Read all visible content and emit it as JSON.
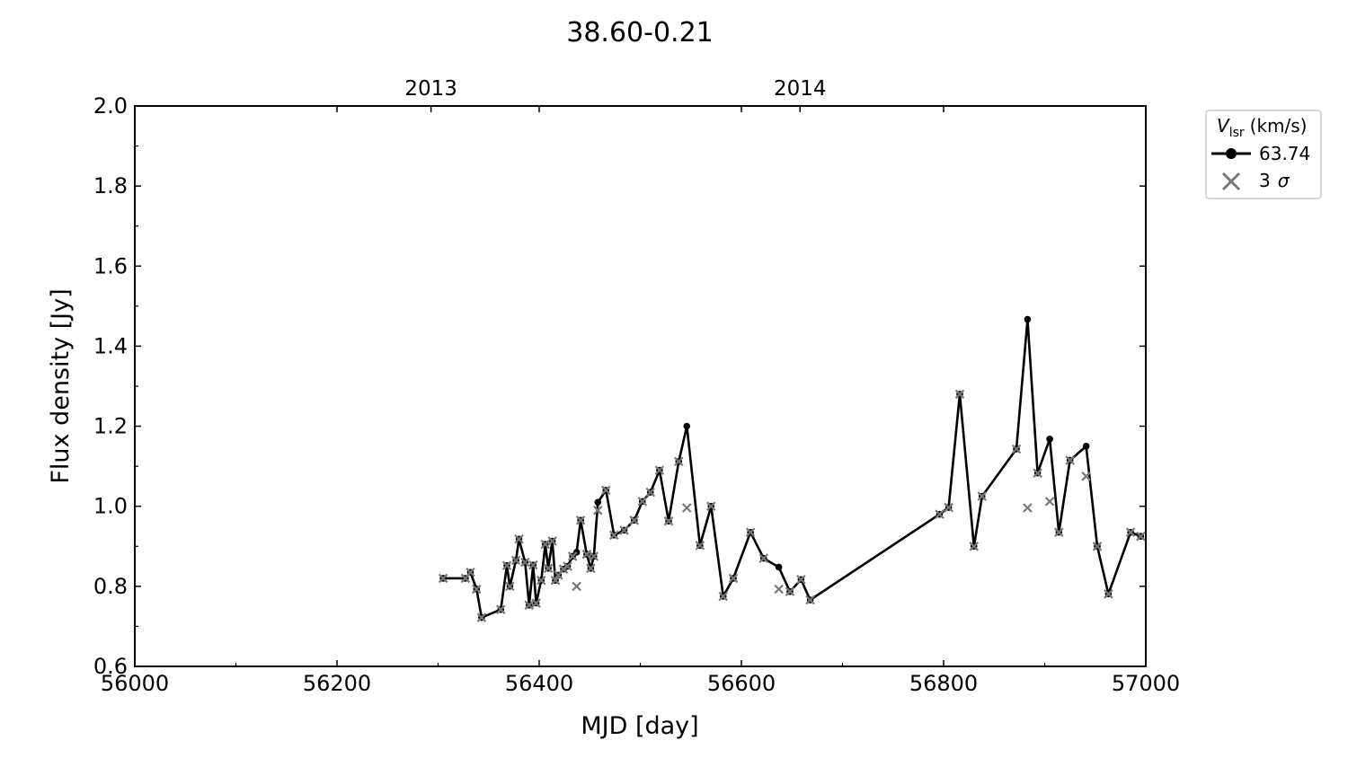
{
  "chart_data": {
    "type": "line",
    "title": "38.60-0.21",
    "xlabel": "MJD [day]",
    "ylabel": "Flux density [Jy]",
    "xlim": [
      56000,
      57000
    ],
    "ylim": [
      0.6,
      2.0
    ],
    "x_ticks": [
      "56000",
      "56200",
      "56400",
      "56600",
      "56800",
      "57000"
    ],
    "y_ticks": [
      "0.6",
      "0.8",
      "1.0",
      "1.2",
      "1.4",
      "1.6",
      "1.8",
      "2.0"
    ],
    "x_tick_values": [
      56000,
      56200,
      56400,
      56600,
      56800,
      57000
    ],
    "y_tick_values": [
      0.6,
      0.8,
      1.0,
      1.2,
      1.4,
      1.6,
      1.8,
      2.0
    ],
    "top_axis": {
      "labels": [
        "2013",
        "2014"
      ],
      "mjd": [
        56293,
        56658
      ]
    },
    "grid": false,
    "legend": {
      "title_symbol": "V",
      "title_sub": "lsr",
      "title_unit": "(km/s)",
      "entries": [
        "63.74",
        "3"
      ],
      "sigma": "σ",
      "placement": "outside-right"
    },
    "colors": {
      "series": "#000000",
      "sigma": "#777777"
    },
    "series": [
      {
        "name": "63.74",
        "x": [
          56305,
          56327,
          56332,
          56338,
          56343,
          56362,
          56368,
          56371,
          56377,
          56380,
          56386,
          56390,
          56394,
          56397,
          56402,
          56406,
          56409,
          56413,
          56416,
          56419,
          56424,
          56428,
          56433,
          56437,
          56441,
          56447,
          56451,
          56454,
          56458,
          56466,
          56474,
          56484,
          56494,
          56502,
          56510,
          56519,
          56528,
          56538,
          56546,
          56559,
          56570,
          56582,
          56592,
          56609,
          56622,
          56637,
          56648,
          56659,
          56668,
          56796,
          56805,
          56816,
          56830,
          56838,
          56872,
          56883,
          56893,
          56905,
          56914,
          56925,
          56941,
          56952,
          56963,
          56985,
          56995
        ],
        "y": [
          0.82,
          0.82,
          0.835,
          0.793,
          0.722,
          0.742,
          0.852,
          0.8,
          0.865,
          0.918,
          0.86,
          0.753,
          0.853,
          0.758,
          0.815,
          0.905,
          0.845,
          0.913,
          0.815,
          0.828,
          0.843,
          0.85,
          0.875,
          0.885,
          0.965,
          0.88,
          0.845,
          0.875,
          1.01,
          1.04,
          0.928,
          0.94,
          0.965,
          1.012,
          1.035,
          1.09,
          0.963,
          1.112,
          1.2,
          0.902,
          1.0,
          0.775,
          0.82,
          0.935,
          0.87,
          0.848,
          0.787,
          0.817,
          0.766,
          0.98,
          0.997,
          1.28,
          0.9,
          1.025,
          1.143,
          1.467,
          1.083,
          1.168,
          0.935,
          1.115,
          1.15,
          0.9,
          0.781,
          0.935,
          0.925
        ]
      },
      {
        "name": "3 σ",
        "type": "scatter",
        "x": [
          56305,
          56327,
          56332,
          56338,
          56343,
          56362,
          56368,
          56371,
          56377,
          56380,
          56386,
          56390,
          56394,
          56397,
          56402,
          56406,
          56409,
          56413,
          56416,
          56419,
          56424,
          56428,
          56433,
          56437,
          56441,
          56447,
          56451,
          56454,
          56458,
          56466,
          56474,
          56484,
          56494,
          56502,
          56510,
          56519,
          56528,
          56538,
          56546,
          56559,
          56570,
          56582,
          56592,
          56609,
          56622,
          56637,
          56648,
          56659,
          56668,
          56796,
          56805,
          56816,
          56830,
          56838,
          56872,
          56883,
          56893,
          56905,
          56914,
          56925,
          56941,
          56952,
          56963,
          56985,
          56995
        ],
        "y": [
          0.82,
          0.82,
          0.835,
          0.793,
          0.722,
          0.742,
          0.852,
          0.8,
          0.865,
          0.918,
          0.86,
          0.753,
          0.853,
          0.758,
          0.815,
          0.905,
          0.845,
          0.913,
          0.815,
          0.828,
          0.843,
          0.85,
          0.875,
          0.8,
          0.965,
          0.88,
          0.845,
          0.875,
          0.99,
          1.04,
          0.928,
          0.94,
          0.965,
          1.012,
          1.035,
          1.09,
          0.963,
          1.112,
          0.996,
          0.902,
          1.0,
          0.775,
          0.82,
          0.935,
          0.87,
          0.793,
          0.787,
          0.817,
          0.766,
          0.98,
          0.997,
          1.28,
          0.9,
          1.025,
          1.143,
          0.996,
          1.083,
          1.012,
          0.935,
          1.115,
          1.075,
          0.9,
          0.781,
          0.935,
          0.925
        ]
      }
    ]
  }
}
